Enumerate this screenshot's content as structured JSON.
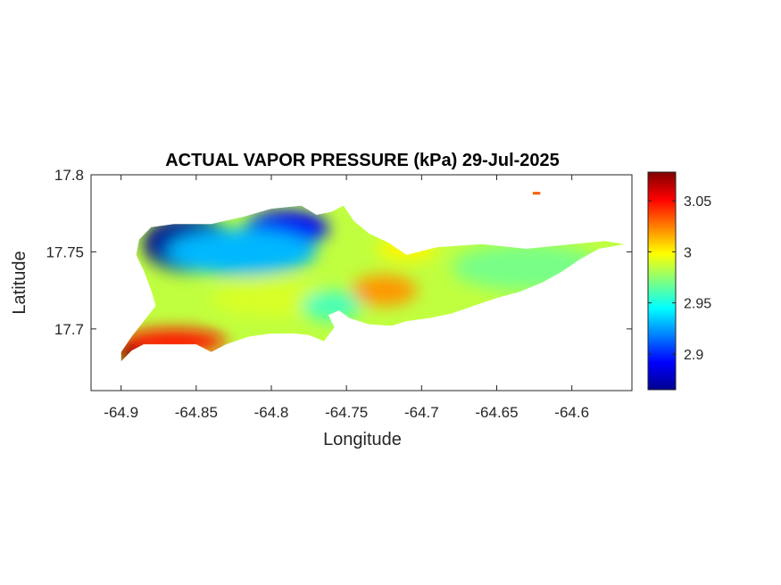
{
  "chart_data": {
    "type": "heatmap",
    "title": "ACTUAL VAPOR PRESSURE (kPa) 29-Jul-2025",
    "xlabel": "Longitude",
    "ylabel": "Latitude",
    "xlim": [
      -64.92,
      -64.56
    ],
    "ylim": [
      17.66,
      17.8
    ],
    "x_ticks": [
      "-64.9",
      "-64.85",
      "-64.8",
      "-64.75",
      "-64.7",
      "-64.65",
      "-64.6"
    ],
    "x_tick_values": [
      -64.9,
      -64.85,
      -64.8,
      -64.75,
      -64.7,
      -64.65,
      -64.6
    ],
    "y_ticks": [
      "17.8",
      "17.75",
      "17.7"
    ],
    "y_tick_values": [
      17.8,
      17.75,
      17.7
    ],
    "colorbar": {
      "colormap": "jet",
      "range": [
        2.865,
        3.078
      ],
      "ticks": [
        "3.05",
        "3",
        "2.95",
        "2.9"
      ],
      "tick_values": [
        3.05,
        3.0,
        2.95,
        2.9
      ],
      "position": "right"
    },
    "grid": false,
    "region_outline": [
      [
        -64.9,
        17.679
      ],
      [
        -64.893,
        17.686
      ],
      [
        -64.885,
        17.69
      ],
      [
        -64.865,
        17.69
      ],
      [
        -64.85,
        17.69
      ],
      [
        -64.84,
        17.685
      ],
      [
        -64.83,
        17.69
      ],
      [
        -64.815,
        17.695
      ],
      [
        -64.8,
        17.697
      ],
      [
        -64.785,
        17.697
      ],
      [
        -64.775,
        17.696
      ],
      [
        -64.765,
        17.692
      ],
      [
        -64.758,
        17.701
      ],
      [
        -64.762,
        17.709
      ],
      [
        -64.755,
        17.712
      ],
      [
        -64.748,
        17.707
      ],
      [
        -64.735,
        17.703
      ],
      [
        -64.72,
        17.702
      ],
      [
        -64.71,
        17.705
      ],
      [
        -64.695,
        17.707
      ],
      [
        -64.68,
        17.71
      ],
      [
        -64.665,
        17.715
      ],
      [
        -64.65,
        17.72
      ],
      [
        -64.635,
        17.724
      ],
      [
        -64.62,
        17.73
      ],
      [
        -64.607,
        17.737
      ],
      [
        -64.595,
        17.745
      ],
      [
        -64.582,
        17.752
      ],
      [
        -64.57,
        17.754
      ],
      [
        -64.565,
        17.755
      ],
      [
        -64.578,
        17.757
      ],
      [
        -64.6,
        17.755
      ],
      [
        -64.63,
        17.752
      ],
      [
        -64.66,
        17.755
      ],
      [
        -64.69,
        17.753
      ],
      [
        -64.71,
        17.748
      ],
      [
        -64.722,
        17.756
      ],
      [
        -64.735,
        17.762
      ],
      [
        -64.745,
        17.77
      ],
      [
        -64.752,
        17.78
      ],
      [
        -64.76,
        17.776
      ],
      [
        -64.77,
        17.774
      ],
      [
        -64.78,
        17.78
      ],
      [
        -64.8,
        17.778
      ],
      [
        -64.818,
        17.773
      ],
      [
        -64.84,
        17.768
      ],
      [
        -64.865,
        17.768
      ],
      [
        -64.88,
        17.766
      ],
      [
        -64.888,
        17.758
      ],
      [
        -64.89,
        17.748
      ],
      [
        -64.885,
        17.738
      ],
      [
        -64.88,
        17.725
      ],
      [
        -64.877,
        17.715
      ],
      [
        -64.885,
        17.705
      ],
      [
        -64.893,
        17.695
      ],
      [
        -64.9,
        17.685
      ]
    ],
    "small_islet": [
      [
        -64.626,
        17.788
      ],
      [
        -64.621,
        17.788
      ]
    ],
    "field_features": [
      {
        "lon": -64.855,
        "lat": 17.755,
        "value": 2.87,
        "rx": 0.03,
        "ry": 0.018
      },
      {
        "lon": -64.79,
        "lat": 17.765,
        "value": 2.89,
        "rx": 0.028,
        "ry": 0.012
      },
      {
        "lon": -64.82,
        "lat": 17.75,
        "value": 2.93,
        "rx": 0.05,
        "ry": 0.015
      },
      {
        "lon": -64.865,
        "lat": 17.692,
        "value": 3.05,
        "rx": 0.035,
        "ry": 0.008
      },
      {
        "lon": -64.895,
        "lat": 17.683,
        "value": 3.078,
        "rx": 0.01,
        "ry": 0.006
      },
      {
        "lon": -64.725,
        "lat": 17.725,
        "value": 3.02,
        "rx": 0.022,
        "ry": 0.01
      },
      {
        "lon": -64.71,
        "lat": 17.752,
        "value": 3.0,
        "rx": 0.02,
        "ry": 0.008
      },
      {
        "lon": -64.63,
        "lat": 17.74,
        "value": 2.97,
        "rx": 0.05,
        "ry": 0.015
      },
      {
        "lon": -64.8,
        "lat": 17.72,
        "value": 2.99,
        "rx": 0.04,
        "ry": 0.012
      },
      {
        "lon": -64.76,
        "lat": 17.715,
        "value": 2.96,
        "rx": 0.02,
        "ry": 0.01
      }
    ]
  }
}
